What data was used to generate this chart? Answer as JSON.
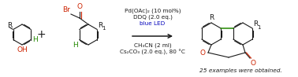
{
  "background_color": "#ffffff",
  "figsize": [
    3.78,
    0.98
  ],
  "dpi": 100,
  "cond1": "Pd(OAc)₂ (10 mol%)",
  "cond2": "DDQ (2.0 eq.)",
  "cond3": "blue LED",
  "cond4": "CH₃CN (2 ml)",
  "cond5": "Cs₂CO₃ (2.0 eq.), 80 °C",
  "footnote": "25 examples were obtained.",
  "bk": "#1a1a1a",
  "rd": "#cc2200",
  "gn": "#228800",
  "bl": "#0000bb",
  "ox": "#cc2200"
}
